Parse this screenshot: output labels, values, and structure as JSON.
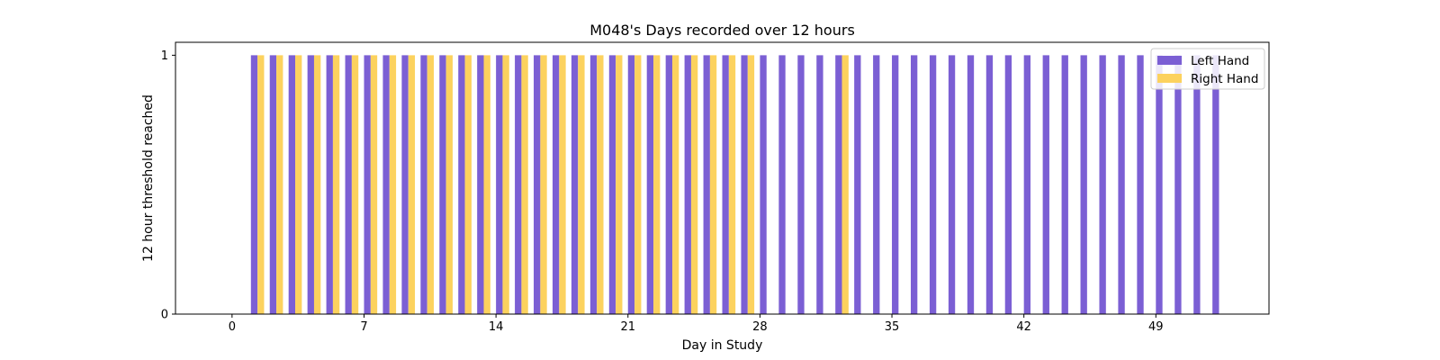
{
  "chart_data": {
    "type": "bar",
    "title": "M048's Days recorded over 12 hours",
    "xlabel": "Day in Study",
    "ylabel": "12 hour threshold reached",
    "xlim": [
      -3,
      55
    ],
    "ylim": [
      0,
      1.05
    ],
    "xticks": [
      0,
      7,
      14,
      21,
      28,
      35,
      42,
      49
    ],
    "yticks": [
      0,
      1
    ],
    "legend_position": "top-right",
    "grid": false,
    "series": [
      {
        "name": "Left Hand",
        "color": "#7b5fd4",
        "x": [
          1,
          2,
          3,
          4,
          5,
          6,
          7,
          8,
          9,
          10,
          11,
          12,
          13,
          14,
          15,
          16,
          17,
          18,
          19,
          20,
          21,
          22,
          23,
          24,
          25,
          26,
          27,
          28,
          29,
          30,
          31,
          32,
          33,
          34,
          35,
          36,
          37,
          38,
          39,
          40,
          41,
          42,
          43,
          44,
          45,
          46,
          47,
          48,
          49,
          50,
          51,
          52
        ],
        "values": [
          1,
          1,
          1,
          1,
          1,
          1,
          1,
          1,
          1,
          1,
          1,
          1,
          1,
          1,
          1,
          1,
          1,
          1,
          1,
          1,
          1,
          1,
          1,
          1,
          1,
          1,
          1,
          1,
          1,
          1,
          1,
          1,
          1,
          1,
          1,
          1,
          1,
          1,
          1,
          1,
          1,
          1,
          1,
          1,
          1,
          1,
          1,
          1,
          1,
          1,
          1,
          1
        ]
      },
      {
        "name": "Right Hand",
        "color": "#fcd25e",
        "x": [
          1,
          2,
          3,
          4,
          5,
          6,
          7,
          8,
          9,
          10,
          11,
          12,
          13,
          14,
          15,
          16,
          17,
          18,
          19,
          20,
          21,
          22,
          23,
          24,
          25,
          26,
          27,
          32
        ],
        "values": [
          1,
          1,
          1,
          1,
          1,
          1,
          1,
          1,
          1,
          1,
          1,
          1,
          1,
          1,
          1,
          1,
          1,
          1,
          1,
          1,
          1,
          1,
          1,
          1,
          1,
          1,
          1,
          1
        ]
      }
    ]
  }
}
